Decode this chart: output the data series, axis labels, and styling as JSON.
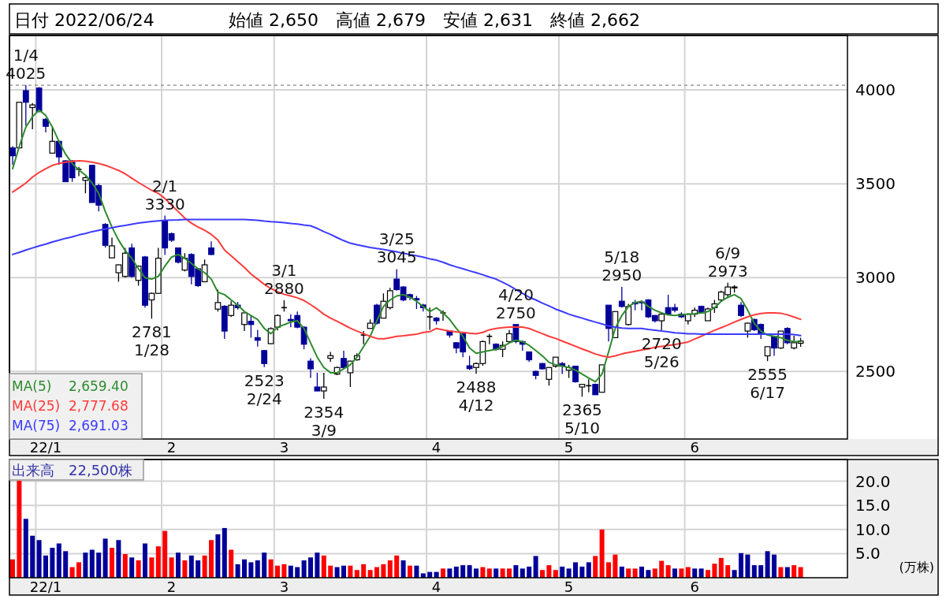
{
  "chart_data": [
    {
      "type": "candlestick",
      "title": "日付 2022/06/24",
      "subtitle": "始値 2,650　高値 2,679　安値 2,631　終値 2,662",
      "categories": [
        null,
        null,
        null,
        null,
        null,
        "22/1",
        null,
        null,
        null,
        null,
        null,
        null,
        null,
        null,
        null,
        null,
        null,
        null,
        null,
        null,
        null,
        null,
        null,
        null,
        "2",
        null,
        null,
        null,
        null,
        null,
        null,
        null,
        null,
        null,
        null,
        null,
        null,
        null,
        null,
        null,
        null,
        "3",
        null,
        null,
        null,
        null,
        null,
        null,
        null,
        null,
        null,
        null,
        null,
        null,
        null,
        null,
        null,
        null,
        null,
        null,
        null,
        null,
        null,
        null,
        "4",
        null,
        null,
        null,
        null,
        null,
        null,
        null,
        null,
        null,
        null,
        null,
        null,
        null,
        null,
        null,
        null,
        null,
        null,
        null,
        "5",
        null,
        null,
        null,
        null,
        null,
        null,
        null,
        null,
        null,
        null,
        null,
        null,
        null,
        null,
        null,
        null,
        null,
        null,
        "6",
        null,
        null,
        null,
        null,
        null,
        null,
        null,
        null,
        null,
        null,
        null,
        null,
        null,
        null,
        null,
        null
      ],
      "ohlc": [
        [
          3691,
          3700,
          3601,
          3649
        ],
        [
          3691,
          3934,
          3691,
          3934
        ],
        [
          3996,
          4025,
          3809,
          3934
        ],
        [
          3906,
          3930,
          3790,
          3920
        ],
        [
          4010,
          4015,
          3880,
          3885
        ],
        [
          3843,
          3850,
          3774,
          3806
        ],
        [
          3663,
          3802,
          3663,
          3726
        ],
        [
          3726,
          3726,
          3601,
          3643
        ],
        [
          3622,
          3625,
          3511,
          3511
        ],
        [
          3622,
          3625,
          3510,
          3532
        ],
        [
          3577,
          3590,
          3540,
          3577
        ],
        [
          3518,
          3539,
          3449,
          3532
        ],
        [
          3598,
          3600,
          3400,
          3400
        ],
        [
          3490,
          3500,
          3352,
          3386
        ],
        [
          3283,
          3290,
          3160,
          3172
        ],
        [
          3105,
          3213,
          3105,
          3169
        ],
        [
          3026,
          3070,
          2978,
          3068
        ],
        [
          3006,
          3158,
          3000,
          3130
        ],
        [
          3158,
          3180,
          3000,
          3006
        ],
        [
          2985,
          3065,
          2957,
          3061
        ],
        [
          3110,
          3115,
          2840,
          2853
        ],
        [
          2881,
          2920,
          2781,
          2916
        ],
        [
          2916,
          3158,
          2916,
          3103
        ],
        [
          3303,
          3330,
          3120,
          3158
        ],
        [
          3234,
          3240,
          3190,
          3199
        ],
        [
          3158,
          3160,
          3075,
          3082
        ],
        [
          3040,
          3130,
          3033,
          3103
        ],
        [
          3123,
          3130,
          2964,
          3006
        ],
        [
          3047,
          3050,
          2950,
          2957
        ],
        [
          2978,
          3096,
          2975,
          3068
        ],
        [
          3158,
          3193,
          3120,
          3123
        ],
        [
          2832,
          2936,
          2819,
          2867
        ],
        [
          2847,
          2853,
          2673,
          2715
        ],
        [
          2798,
          2874,
          2790,
          2853
        ],
        [
          2853,
          2870,
          2830,
          2840
        ],
        [
          2750,
          2812,
          2715,
          2812
        ],
        [
          2767,
          2798,
          2680,
          2750
        ],
        [
          2680,
          2722,
          2632,
          2666
        ],
        [
          2611,
          2615,
          2523,
          2542
        ],
        [
          2648,
          2735,
          2645,
          2728
        ],
        [
          2736,
          2805,
          2718,
          2798
        ],
        [
          2840,
          2880,
          2819,
          2840
        ],
        [
          2777,
          2805,
          2735,
          2770
        ],
        [
          2798,
          2819,
          2730,
          2736
        ],
        [
          2736,
          2740,
          2618,
          2645
        ],
        [
          2555,
          2570,
          2465,
          2514
        ],
        [
          2417,
          2493,
          2396,
          2396
        ],
        [
          2396,
          2493,
          2354,
          2417
        ],
        [
          2570,
          2604,
          2552,
          2584
        ],
        [
          2486,
          2525,
          2480,
          2521
        ],
        [
          2569,
          2610,
          2515,
          2521
        ],
        [
          2493,
          2557,
          2417,
          2555
        ],
        [
          2562,
          2597,
          2557,
          2584
        ],
        [
          2694,
          2715,
          2645,
          2694
        ],
        [
          2729,
          2777,
          2729,
          2757
        ],
        [
          2853,
          2860,
          2750,
          2757
        ],
        [
          2784,
          2916,
          2784,
          2874
        ],
        [
          2840,
          2945,
          2830,
          2930
        ],
        [
          2992,
          3045,
          2930,
          2936
        ],
        [
          2950,
          2955,
          2874,
          2881
        ],
        [
          2909,
          2915,
          2880,
          2895
        ],
        [
          2888,
          2902,
          2833,
          2881
        ],
        [
          2854,
          2860,
          2819,
          2840
        ],
        [
          2791,
          2840,
          2722,
          2791
        ],
        [
          2784,
          2790,
          2750,
          2770
        ],
        [
          2812,
          2826,
          2770,
          2812
        ],
        [
          2715,
          2715,
          2680,
          2694
        ],
        [
          2653,
          2655,
          2597,
          2625
        ],
        [
          2701,
          2701,
          2576,
          2604
        ],
        [
          2530,
          2583,
          2507,
          2515
        ],
        [
          2521,
          2548,
          2488,
          2542
        ],
        [
          2542,
          2665,
          2530,
          2659
        ],
        [
          2687,
          2701,
          2645,
          2687
        ],
        [
          2645,
          2650,
          2610,
          2618
        ],
        [
          2618,
          2660,
          2576,
          2639
        ],
        [
          2659,
          2722,
          2650,
          2701
        ],
        [
          2750,
          2750,
          2650,
          2659
        ],
        [
          2659,
          2665,
          2610,
          2645
        ],
        [
          2604,
          2605,
          2550,
          2562
        ],
        [
          2500,
          2505,
          2458,
          2479
        ],
        [
          2542,
          2545,
          2510,
          2514
        ],
        [
          2458,
          2521,
          2424,
          2521
        ],
        [
          2528,
          2576,
          2520,
          2576
        ],
        [
          2542,
          2550,
          2486,
          2528
        ],
        [
          2507,
          2535,
          2465,
          2521
        ],
        [
          2528,
          2530,
          2440,
          2445
        ],
        [
          2417,
          2431,
          2365,
          2431
        ],
        [
          2424,
          2458,
          2389,
          2424
        ],
        [
          2431,
          2435,
          2376,
          2376
        ],
        [
          2389,
          2535,
          2389,
          2535
        ],
        [
          2853,
          2853,
          2660,
          2729
        ],
        [
          2680,
          2819,
          2680,
          2819
        ],
        [
          2874,
          2950,
          2840,
          2846
        ],
        [
          2750,
          2860,
          2745,
          2846
        ],
        [
          2867,
          2881,
          2826,
          2860
        ],
        [
          2870,
          2878,
          2826,
          2867
        ],
        [
          2881,
          2885,
          2785,
          2791
        ],
        [
          2798,
          2800,
          2760,
          2770
        ],
        [
          2770,
          2810,
          2720,
          2805
        ],
        [
          2840,
          2909,
          2800,
          2805
        ],
        [
          2840,
          2860,
          2815,
          2826
        ],
        [
          2805,
          2815,
          2785,
          2791
        ],
        [
          2770,
          2810,
          2750,
          2805
        ],
        [
          2805,
          2840,
          2790,
          2826
        ],
        [
          2847,
          2850,
          2810,
          2812
        ],
        [
          2770,
          2840,
          2770,
          2833
        ],
        [
          2840,
          2881,
          2812,
          2860
        ],
        [
          2881,
          2930,
          2870,
          2923
        ],
        [
          2909,
          2973,
          2890,
          2950
        ],
        [
          2945,
          2960,
          2920,
          2950
        ],
        [
          2853,
          2870,
          2790,
          2798
        ],
        [
          2715,
          2760,
          2680,
          2757
        ],
        [
          2777,
          2780,
          2715,
          2722
        ],
        [
          2750,
          2755,
          2673,
          2701
        ],
        [
          2583,
          2632,
          2555,
          2632
        ],
        [
          2687,
          2690,
          2583,
          2625
        ],
        [
          2625,
          2715,
          2620,
          2715
        ],
        [
          2729,
          2735,
          2645,
          2653
        ],
        [
          2625,
          2690,
          2618,
          2653
        ],
        [
          2650,
          2679,
          2631,
          2662
        ]
      ],
      "colors": [
        "#000099",
        "#ffffff",
        "#000099",
        "#ffffff",
        "#000099",
        "#000099",
        "#ffffff",
        "#000099",
        "#000099",
        "#000099",
        "#000000",
        "#ffffff",
        "#000099",
        "#000099",
        "#000099",
        "#ffffff",
        "#ffffff",
        "#ffffff",
        "#000099",
        "#ffffff",
        "#000099",
        "#ffffff",
        "#ffffff",
        "#000099",
        "#000099",
        "#000099",
        "#ffffff",
        "#000099",
        "#000099",
        "#ffffff",
        "#000099",
        "#ffffff",
        "#000099",
        "#ffffff",
        "#000099",
        "#ffffff",
        "#000099",
        "#000099",
        "#000099",
        "#ffffff",
        "#ffffff",
        "#000000",
        "#000099",
        "#000099",
        "#000099",
        "#000099",
        "#000099",
        "#ffffff",
        "#ffffff",
        "#ffffff",
        "#000099",
        "#ffffff",
        "#ffffff",
        "#000000",
        "#ffffff",
        "#000099",
        "#ffffff",
        "#ffffff",
        "#000099",
        "#000099",
        "#000099",
        "#000099",
        "#000099",
        "#000000",
        "#000099",
        "#000000",
        "#000099",
        "#000099",
        "#000099",
        "#000099",
        "#ffffff",
        "#ffffff",
        "#000000",
        "#000099",
        "#ffffff",
        "#ffffff",
        "#000099",
        "#000099",
        "#000099",
        "#000099",
        "#000099",
        "#ffffff",
        "#ffffff",
        "#000099",
        "#ffffff",
        "#000099",
        "#ffffff",
        "#000000",
        "#000099",
        "#ffffff",
        "#000099",
        "#ffffff",
        "#000099",
        "#ffffff",
        "#000099",
        "#000099",
        "#000099",
        "#000099",
        "#ffffff",
        "#000099",
        "#000099",
        "#000099",
        "#ffffff",
        "#ffffff",
        "#000099",
        "#ffffff",
        "#ffffff",
        "#ffffff",
        "#ffffff",
        "#ffffff",
        "#000099",
        "#ffffff",
        "#000099",
        "#000099",
        "#ffffff",
        "#000099",
        "#ffffff",
        "#000099",
        "#ffffff",
        "#ffffff"
      ],
      "series": [
        {
          "name": "MA(5)    2,659.40",
          "type": "line",
          "color": "#2e8b2e",
          "values": [
            3580,
            3698,
            3802,
            3857,
            3892,
            3864,
            3802,
            3726,
            3657,
            3608,
            3573,
            3546,
            3504,
            3449,
            3352,
            3269,
            3200,
            3144,
            3103,
            3047,
            2999,
            2992,
            3006,
            3061,
            3109,
            3123,
            3103,
            3075,
            3047,
            3026,
            2992,
            2922,
            2909,
            2881,
            2853,
            2819,
            2798,
            2777,
            2729,
            2701,
            2736,
            2749,
            2763,
            2770,
            2729,
            2652,
            2576,
            2521,
            2493,
            2493,
            2514,
            2535,
            2576,
            2632,
            2687,
            2770,
            2846,
            2881,
            2902,
            2909,
            2895,
            2874,
            2846,
            2819,
            2839,
            2812,
            2777,
            2729,
            2687,
            2625,
            2597,
            2604,
            2611,
            2618,
            2632,
            2652,
            2666,
            2659,
            2639,
            2611,
            2583,
            2549,
            2535,
            2528,
            2521,
            2507,
            2486,
            2465,
            2445,
            2486,
            2604,
            2729,
            2798,
            2846,
            2867,
            2874,
            2846,
            2826,
            2812,
            2801,
            2798,
            2802,
            2805,
            2808,
            2812,
            2819,
            2839,
            2874,
            2895,
            2909,
            2888,
            2826,
            2756,
            2715,
            2694,
            2687,
            2680,
            2666,
            2659,
            2659
          ]
        },
        {
          "name": "MA(25)  2,777.68",
          "type": "line",
          "color": "#ff3b3b",
          "values": [
            3456,
            3479,
            3504,
            3535,
            3560,
            3580,
            3598,
            3608,
            3615,
            3619,
            3622,
            3620,
            3615,
            3608,
            3598,
            3585,
            3571,
            3553,
            3529,
            3507,
            3486,
            3465,
            3449,
            3421,
            3386,
            3352,
            3317,
            3290,
            3269,
            3252,
            3230,
            3200,
            3147,
            3116,
            3085,
            3054,
            3019,
            2992,
            2964,
            2942,
            2925,
            2911,
            2902,
            2892,
            2878,
            2856,
            2832,
            2805,
            2784,
            2767,
            2749,
            2731,
            2715,
            2701,
            2687,
            2676,
            2673,
            2680,
            2687,
            2690,
            2694,
            2698,
            2708,
            2712,
            2729,
            2722,
            2715,
            2711,
            2708,
            2704,
            2701,
            2708,
            2722,
            2729,
            2733,
            2736,
            2736,
            2736,
            2729,
            2715,
            2701,
            2687,
            2676,
            2662,
            2648,
            2634,
            2620,
            2607,
            2593,
            2583,
            2576,
            2583,
            2593,
            2601,
            2607,
            2615,
            2620,
            2629,
            2634,
            2639,
            2643,
            2650,
            2657,
            2673,
            2687,
            2704,
            2719,
            2733,
            2747,
            2763,
            2777,
            2791,
            2802,
            2809,
            2812,
            2812,
            2810,
            2802,
            2790,
            2778
          ]
        },
        {
          "name": "MA(75)  2,691.03",
          "type": "line",
          "color": "#3b3bff",
          "values": [
            3123,
            3134,
            3147,
            3158,
            3169,
            3178,
            3190,
            3199,
            3209,
            3217,
            3227,
            3235,
            3245,
            3252,
            3259,
            3266,
            3273,
            3278,
            3284,
            3290,
            3295,
            3299,
            3302,
            3305,
            3306,
            3307,
            3309,
            3309,
            3310,
            3310,
            3310,
            3309,
            3310,
            3309,
            3309,
            3309,
            3307,
            3305,
            3301,
            3298,
            3296,
            3293,
            3288,
            3285,
            3280,
            3276,
            3262,
            3245,
            3230,
            3213,
            3197,
            3183,
            3175,
            3168,
            3161,
            3155,
            3150,
            3144,
            3137,
            3130,
            3123,
            3116,
            3109,
            3100,
            3093,
            3082,
            3068,
            3057,
            3047,
            3036,
            3026,
            3015,
            3003,
            2992,
            2975,
            2957,
            2936,
            2916,
            2895,
            2881,
            2864,
            2849,
            2832,
            2819,
            2805,
            2794,
            2784,
            2773,
            2763,
            2753,
            2742,
            2736,
            2731,
            2729,
            2729,
            2729,
            2724,
            2720,
            2715,
            2711,
            2706,
            2704,
            2701,
            2700,
            2698,
            2698,
            2698,
            2698,
            2698,
            2698,
            2698,
            2698,
            2698,
            2698,
            2698,
            2698,
            2698,
            2698,
            2697,
            2691
          ]
        }
      ],
      "ylim": [
        2140,
        4290
      ],
      "yticks": [
        2500,
        3000,
        3500,
        4000
      ],
      "grid": true,
      "legend": "bottom left",
      "ref_lines": [
        {
          "axis": "y",
          "value": 4025,
          "color": "#888888",
          "line_style": "dashed"
        }
      ],
      "annotations": [
        {
          "text": "1/4\n4025",
          "y": 4025
        },
        {
          "text": "2/1\n3330",
          "y": 3330
        },
        {
          "text": "2781\n1/28",
          "y": 2781
        },
        {
          "text": "2523\n2/24",
          "y": 2523
        },
        {
          "text": "3/1\n2880",
          "y": 2880
        },
        {
          "text": "2354\n3/9",
          "y": 2354
        },
        {
          "text": "3/25\n3045",
          "y": 3045
        },
        {
          "text": "2488\n4/12",
          "y": 2488
        },
        {
          "text": "4/20\n2750",
          "y": 2750
        },
        {
          "text": "2365\n5/10",
          "y": 2365
        },
        {
          "text": "5/18\n2950",
          "y": 2950
        },
        {
          "text": "2720\n5/26",
          "y": 2720
        },
        {
          "text": "6/9\n2973",
          "y": 2973
        },
        {
          "text": "2555\n6/17",
          "y": 2555
        }
      ]
    },
    {
      "type": "bar",
      "title": "出来高　22,500株",
      "ylabel": "(万株)",
      "categories": [
        null,
        null,
        null,
        null,
        null,
        "22/1",
        null,
        null,
        null,
        null,
        null,
        null,
        null,
        null,
        null,
        null,
        null,
        null,
        null,
        null,
        null,
        null,
        null,
        null,
        "2",
        null,
        null,
        null,
        null,
        null,
        null,
        null,
        null,
        null,
        null,
        null,
        null,
        null,
        null,
        null,
        null,
        "3",
        null,
        null,
        null,
        null,
        null,
        null,
        null,
        null,
        null,
        null,
        null,
        null,
        null,
        null,
        null,
        null,
        null,
        null,
        null,
        null,
        null,
        null,
        "4",
        null,
        null,
        null,
        null,
        null,
        null,
        null,
        null,
        null,
        null,
        null,
        null,
        null,
        null,
        null,
        null,
        null,
        null,
        null,
        "5",
        null,
        null,
        null,
        null,
        null,
        null,
        null,
        null,
        null,
        null,
        null,
        null,
        null,
        null,
        null,
        null,
        null,
        null,
        "6",
        null,
        null,
        null,
        null,
        null,
        null,
        null,
        null,
        null,
        null,
        null,
        null,
        null,
        null,
        null,
        null
      ],
      "values": [
        3.8,
        20.1,
        12.2,
        8.7,
        7.8,
        4.6,
        6.2,
        7.1,
        5.5,
        2.2,
        3.2,
        5.2,
        5.8,
        5.2,
        8.1,
        6.2,
        7.8,
        4.9,
        4.2,
        3.6,
        7.1,
        4.2,
        6.5,
        9.7,
        4.2,
        5.2,
        3.6,
        4.6,
        3.6,
        4.6,
        7.8,
        9.0,
        10.3,
        5.8,
        2.8,
        3.8,
        3.2,
        3.6,
        5.2,
        3.8,
        2.5,
        2.8,
        2.5,
        2.2,
        3.6,
        4.2,
        5.2,
        4.6,
        2.5,
        2.2,
        2.5,
        2.5,
        1.6,
        2.8,
        1.6,
        2.2,
        2.8,
        3.6,
        4.6,
        3.6,
        2.5,
        2.5,
        0.9,
        1.2,
        1.2,
        1.9,
        1.9,
        2.3,
        2.6,
        2.6,
        1.9,
        2.2,
        1.9,
        1.9,
        1.9,
        1.9,
        2.6,
        1.9,
        2.3,
        4.5,
        1.6,
        2.6,
        1.6,
        2.3,
        1.9,
        3.2,
        2.3,
        3.2,
        4.5,
        10.0,
        3.2,
        4.8,
        2.3,
        1.9,
        1.9,
        2.3,
        1.6,
        1.9,
        3.5,
        2.6,
        1.9,
        1.9,
        2.2,
        1.9,
        1.9,
        1.6,
        2.9,
        4.1,
        2.6,
        1.6,
        5.1,
        4.8,
        2.6,
        2.6,
        5.5,
        4.8,
        2.2,
        2.2,
        2.6,
        2.2
      ],
      "colors": [
        "#ff0000",
        "#ff0000",
        "#000099",
        "#000099",
        "#000099",
        "#000099",
        "#000099",
        "#000099",
        "#000099",
        "#ff0000",
        "#ff0000",
        "#000099",
        "#000099",
        "#000099",
        "#000099",
        "#ff0000",
        "#000099",
        "#ff0000",
        "#000099",
        "#ff0000",
        "#000099",
        "#ff0000",
        "#ff0000",
        "#ff0000",
        "#ff0000",
        "#000099",
        "#ff0000",
        "#000099",
        "#000099",
        "#ff0000",
        "#ff0000",
        "#000099",
        "#000099",
        "#ff0000",
        "#000099",
        "#000099",
        "#000099",
        "#000099",
        "#000099",
        "#ff0000",
        "#ff0000",
        "#ff0000",
        "#000099",
        "#000099",
        "#000099",
        "#000099",
        "#000099",
        "#ff0000",
        "#ff0000",
        "#000099",
        "#000099",
        "#ff0000",
        "#ff0000",
        "#ff0000",
        "#ff0000",
        "#ff0000",
        "#ff0000",
        "#ff0000",
        "#ff0000",
        "#000099",
        "#ff0000",
        "#000099",
        "#000099",
        "#000099",
        "#000099",
        "#ff0000",
        "#000099",
        "#000099",
        "#000099",
        "#000099",
        "#000099",
        "#ff0000",
        "#ff0000",
        "#000099",
        "#ff0000",
        "#ff0000",
        "#000099",
        "#000099",
        "#000099",
        "#000099",
        "#ff0000",
        "#ff0000",
        "#ff0000",
        "#000099",
        "#000099",
        "#000099",
        "#000099",
        "#000099",
        "#ff0000",
        "#ff0000",
        "#ff0000",
        "#ff0000",
        "#000099",
        "#ff0000",
        "#ff0000",
        "#000099",
        "#000099",
        "#ff0000",
        "#ff0000",
        "#ff0000",
        "#000099",
        "#ff0000",
        "#ff0000",
        "#000099",
        "#000099",
        "#ff0000",
        "#ff0000",
        "#ff0000",
        "#ff0000",
        "#000099",
        "#000099",
        "#000099",
        "#000099",
        "#000099",
        "#000099",
        "#000099",
        "#ff0000",
        "#000099",
        "#ff0000",
        "#ff0000"
      ],
      "ylim": [
        0,
        24.5
      ],
      "yticks": [
        {
          "value": 5,
          "label": "5.0"
        },
        {
          "value": 10,
          "label": "10.0"
        },
        {
          "value": 15,
          "label": "15.0"
        },
        {
          "value": 20,
          "label": "20.0"
        }
      ],
      "grid": true
    }
  ]
}
